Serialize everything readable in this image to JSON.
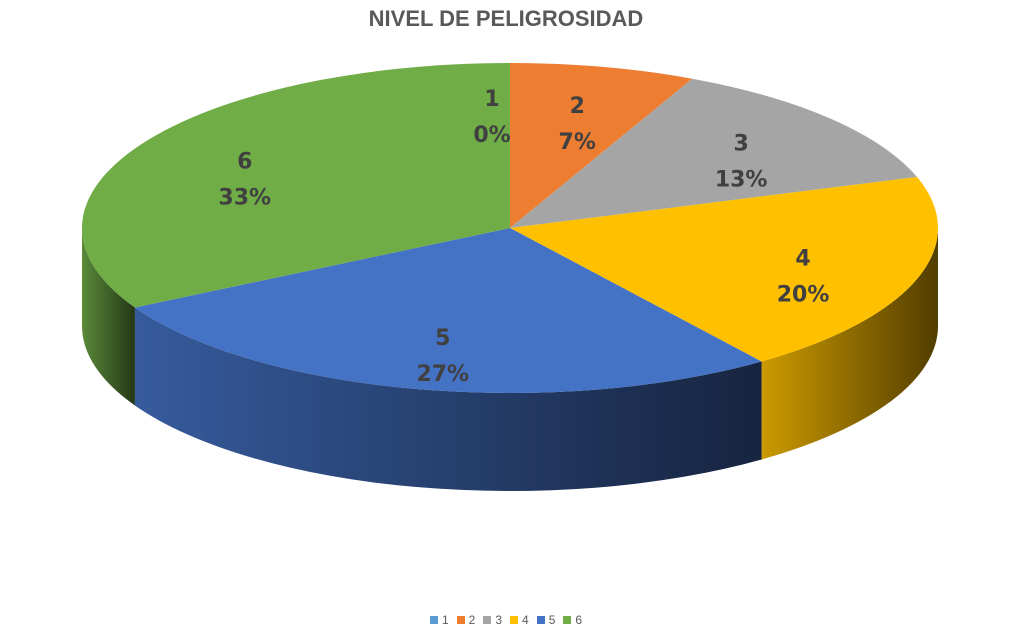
{
  "chart_data": {
    "type": "pie",
    "title": "NIVEL DE PELIGROSIDAD",
    "categories": [
      "1",
      "2",
      "3",
      "4",
      "5",
      "6"
    ],
    "values": [
      0,
      7,
      13,
      20,
      27,
      33
    ],
    "data_labels": [
      "0%",
      "7%",
      "13%",
      "20%",
      "27%",
      "33%"
    ],
    "colors": [
      "#5B9BD5",
      "#ED7D31",
      "#A5A5A5",
      "#FFC000",
      "#4472C4",
      "#70AD47"
    ],
    "legend_position": "bottom",
    "style": "3d"
  }
}
